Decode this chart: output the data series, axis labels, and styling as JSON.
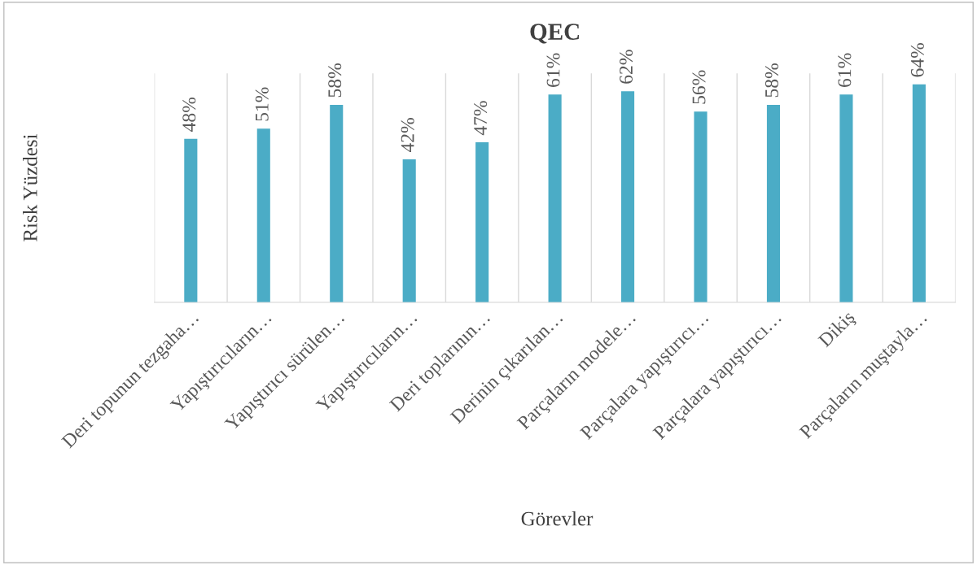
{
  "chart_data": {
    "type": "bar",
    "title": "QEC",
    "xlabel": "Görevler",
    "ylabel": "Risk Yüzdesi",
    "categories": [
      "Deri topunun tezgaha…",
      "Yapıştırıcıların…",
      "Yapıştırıcı sürülen…",
      "Yapıştırıcıların…",
      "Deri toplarının…",
      "Derinin çıkarılan…",
      "Parçaların modele…",
      "Parçalara yapıştırıcı…",
      "Parçalara yapıştırıcı…",
      "Dikiş",
      "Parçaların muştayla…"
    ],
    "values": [
      48,
      51,
      58,
      42,
      47,
      61,
      62,
      56,
      58,
      61,
      64
    ],
    "value_labels": [
      "48%",
      "51%",
      "58%",
      "42%",
      "47%",
      "61%",
      "62%",
      "56%",
      "58%",
      "61%",
      "64%"
    ],
    "color": "#4bacc6",
    "grid": "x",
    "legend": false,
    "tick_labels": "x"
  }
}
